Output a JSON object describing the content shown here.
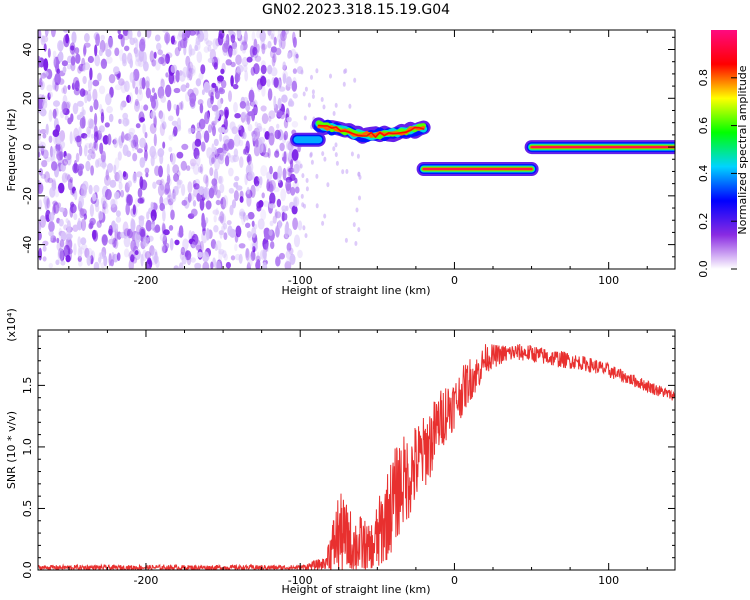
{
  "title": "GN02.2023.318.15.19.G04",
  "colors": {
    "line": "#e8302f",
    "text": "#000000"
  },
  "chart_data": [
    {
      "type": "heatmap",
      "title": "GN02.2023.318.15.19.G04",
      "xlabel": "Height of straight line (km)",
      "ylabel": "Frequency (Hz)",
      "xlim": [
        -270,
        143
      ],
      "ylim": [
        -50,
        48
      ],
      "xticks": [
        -200,
        -100,
        0,
        100
      ],
      "yticks": [
        -40,
        -20,
        0,
        20,
        40
      ],
      "colorbar": {
        "label": "Normalized spectral amplitude",
        "range": [
          0,
          1
        ],
        "ticks": [
          "0.0",
          "0.2",
          "0.4",
          "0.6",
          "0.8"
        ],
        "colors": [
          "#ffffff",
          "#8a2be2",
          "#0000ff",
          "#00d4ff",
          "#00ff00",
          "#ffff00",
          "#ff0000",
          "#ff0a80"
        ]
      },
      "noise_region": {
        "x_range": [
          -270,
          -100
        ],
        "y_range": [
          -50,
          48
        ],
        "amplitude": 0.1
      },
      "segments": [
        {
          "x_range": [
            -102,
            -88
          ],
          "frequency": 3,
          "peak": 0.4
        },
        {
          "x_range": [
            -88,
            -20
          ],
          "frequency": [
            9,
            7,
            5,
            5,
            6,
            8
          ],
          "peak": 0.85
        },
        {
          "x_range": [
            -20,
            50
          ],
          "frequency": -9,
          "peak": 0.95
        },
        {
          "x_range": [
            50,
            143
          ],
          "frequency": 0,
          "peak": 0.95
        }
      ]
    },
    {
      "type": "line",
      "xlabel": "Height of straight line (km)",
      "ylabel": "SNR (10 * v/v)",
      "scale_label": "(x10⁴)",
      "xlim": [
        -270,
        143
      ],
      "ylim": [
        0,
        1.95
      ],
      "xticks": [
        -200,
        -100,
        0,
        100
      ],
      "yticks": [
        "0.0",
        "0.5",
        "1.0",
        "1.5"
      ],
      "series": [
        {
          "x": [
            -270,
            -100,
            -85,
            -80,
            -75,
            -70,
            -65,
            -60,
            -55,
            -50,
            -45,
            -40,
            -35,
            -30,
            -25,
            -20,
            -15,
            -10,
            -5,
            0,
            5,
            10,
            15,
            20,
            30,
            40,
            50,
            60,
            70,
            80,
            90,
            100,
            110,
            120,
            130,
            143
          ],
          "values": [
            0.02,
            0.02,
            0.05,
            0.15,
            0.3,
            0.25,
            0.2,
            0.2,
            0.15,
            0.25,
            0.4,
            0.55,
            0.7,
            0.75,
            0.85,
            0.95,
            1.05,
            1.2,
            1.3,
            1.35,
            1.45,
            1.55,
            1.6,
            1.72,
            1.75,
            1.77,
            1.76,
            1.73,
            1.71,
            1.69,
            1.66,
            1.62,
            1.57,
            1.52,
            1.47,
            1.41
          ],
          "noise_amplitude": [
            0.02,
            0.02,
            0.05,
            0.2,
            0.35,
            0.3,
            0.25,
            0.25,
            0.2,
            0.3,
            0.35,
            0.4,
            0.4,
            0.35,
            0.35,
            0.3,
            0.3,
            0.25,
            0.25,
            0.2,
            0.2,
            0.18,
            0.15,
            0.12,
            0.08,
            0.07,
            0.07,
            0.07,
            0.07,
            0.06,
            0.06,
            0.06,
            0.05,
            0.05,
            0.05,
            0.04
          ]
        }
      ]
    }
  ]
}
